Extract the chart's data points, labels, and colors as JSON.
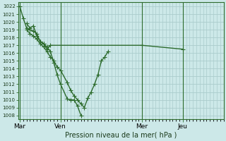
{
  "background_color": "#cce8e8",
  "grid_color": "#aacccc",
  "line_color": "#2d6b2d",
  "xlabel": "Pression niveau de la mer( hPa )",
  "ylim": [
    1007.5,
    1022.5
  ],
  "yticks": [
    1008,
    1009,
    1010,
    1011,
    1012,
    1013,
    1014,
    1015,
    1016,
    1017,
    1018,
    1019,
    1020,
    1021,
    1022
  ],
  "xtick_labels": [
    "Mar",
    "Ven",
    "Mer",
    "Jeu"
  ],
  "xtick_positions": [
    0,
    12,
    36,
    48
  ],
  "xlim": [
    -0.5,
    60
  ],
  "series1_x": [
    0,
    1,
    2,
    3,
    4,
    5,
    6,
    7,
    8,
    9,
    10,
    11,
    12,
    14,
    15,
    16,
    17,
    18
  ],
  "series1_y": [
    1022,
    1020.5,
    1019.2,
    1019.0,
    1018.8,
    1018.5,
    1017.5,
    1017.2,
    1016.8,
    1016.2,
    1014.8,
    1013.2,
    1012.0,
    1010.1,
    1010.0,
    1010.0,
    1009.2,
    1008.0
  ],
  "series2_x": [
    2,
    3,
    4,
    5,
    6,
    7,
    8,
    9,
    36,
    48
  ],
  "series2_y": [
    1019.8,
    1019.2,
    1019.5,
    1018.2,
    1017.5,
    1017.2,
    1016.5,
    1017.0,
    1017.0,
    1016.5
  ],
  "series3_x": [
    2,
    3,
    4,
    5,
    6,
    7,
    8,
    9,
    10,
    11,
    12,
    14,
    15,
    16,
    17,
    18,
    19,
    20,
    21,
    22,
    23,
    24,
    25,
    26
  ],
  "series3_y": [
    1019.0,
    1018.5,
    1018.2,
    1017.8,
    1017.2,
    1016.8,
    1016.2,
    1015.5,
    1015.0,
    1014.2,
    1013.8,
    1012.2,
    1011.2,
    1010.5,
    1010.0,
    1009.5,
    1009.0,
    1010.2,
    1011.0,
    1012.0,
    1013.2,
    1015.0,
    1015.5,
    1016.2
  ],
  "marker_size": 2.5,
  "linewidth": 1.0
}
